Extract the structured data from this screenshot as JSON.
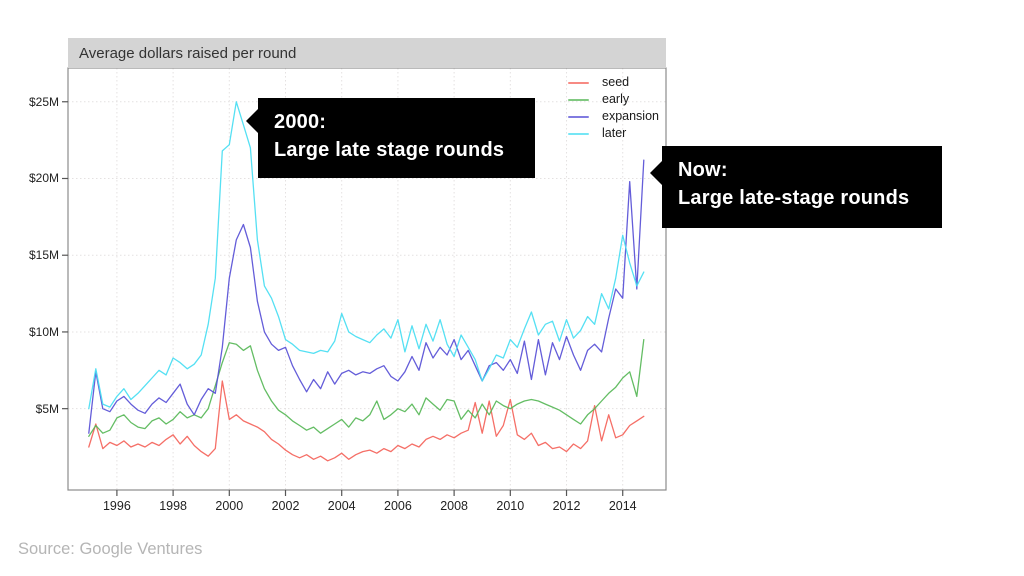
{
  "source": "Source: Google Ventures",
  "annotations": [
    {
      "line1": "2000:",
      "line2": "Large late stage rounds"
    },
    {
      "line1": "Now:",
      "line2": "Large late-stage rounds"
    }
  ],
  "colors": {
    "title_bar_bg": "#d4d4d4",
    "title_text": "#333333",
    "annotation_bg": "#000000",
    "annotation_text": "#ffffff",
    "axis_text": "#222222",
    "plot_border": "#8c8c8c",
    "tick": "#555555",
    "grid": "#e4e1e1",
    "source_text": "#b5b5b5"
  },
  "chart_data": {
    "type": "line",
    "title": "Average dollars raised per round",
    "xlabel": "",
    "ylabel": "",
    "grid": "dotted",
    "legend_position": "top-right-inside",
    "x_start": 1995,
    "x_step": 0.25,
    "x_unit": "year (quarterly points)",
    "y_unit": "$M average raised per round",
    "xlim": [
      1994.26,
      2015.54
    ],
    "ylim": [
      -0.3,
      27.2
    ],
    "x_ticks": [
      "1996",
      "1998",
      "2000",
      "2002",
      "2004",
      "2006",
      "2008",
      "2010",
      "2012",
      "2014"
    ],
    "x_tick_years": [
      1996,
      1998,
      2000,
      2002,
      2004,
      2006,
      2008,
      2010,
      2012,
      2014
    ],
    "y_ticks": [
      {
        "value": 5,
        "label": "$5M"
      },
      {
        "value": 10,
        "label": "$10M"
      },
      {
        "value": 15,
        "label": "$15M"
      },
      {
        "value": 20,
        "label": "$20M"
      },
      {
        "value": 25,
        "label": "$25M"
      }
    ],
    "series": [
      {
        "name": "seed",
        "color": "#f4635a",
        "values": [
          2.5,
          4.0,
          2.4,
          2.8,
          2.6,
          2.9,
          2.5,
          2.7,
          2.5,
          2.8,
          2.6,
          3.0,
          3.3,
          2.7,
          3.2,
          2.6,
          2.2,
          1.9,
          2.4,
          6.8,
          4.3,
          4.6,
          4.2,
          4.0,
          3.8,
          3.5,
          3.0,
          2.7,
          2.3,
          2.0,
          1.8,
          2.0,
          1.7,
          1.9,
          1.6,
          1.8,
          2.1,
          1.7,
          2.0,
          2.2,
          2.3,
          2.1,
          2.4,
          2.2,
          2.6,
          2.4,
          2.7,
          2.5,
          3.0,
          3.2,
          3.0,
          3.3,
          3.1,
          3.4,
          3.6,
          5.4,
          3.4,
          5.5,
          3.2,
          3.9,
          5.6,
          3.3,
          3.0,
          3.4,
          2.6,
          2.8,
          2.4,
          2.5,
          2.2,
          2.7,
          2.4,
          2.9,
          5.2,
          2.9,
          4.6,
          3.1,
          3.3,
          3.9,
          4.2,
          4.5
        ]
      },
      {
        "name": "early",
        "color": "#57b757",
        "values": [
          3.2,
          3.9,
          3.4,
          3.6,
          4.4,
          4.6,
          4.1,
          3.8,
          3.7,
          4.2,
          4.4,
          4.0,
          4.3,
          4.8,
          4.4,
          4.6,
          4.4,
          5.0,
          6.5,
          8.0,
          9.3,
          9.2,
          8.8,
          9.1,
          7.5,
          6.3,
          5.5,
          4.9,
          4.6,
          4.2,
          3.9,
          3.6,
          3.8,
          3.4,
          3.7,
          4.0,
          4.3,
          3.8,
          4.4,
          4.2,
          4.6,
          5.5,
          4.3,
          4.6,
          5.0,
          4.8,
          5.3,
          4.6,
          5.7,
          5.3,
          4.9,
          5.6,
          5.5,
          4.3,
          4.9,
          4.4,
          5.3,
          4.6,
          5.5,
          5.2,
          5.0,
          5.3,
          5.5,
          5.6,
          5.5,
          5.3,
          5.1,
          4.9,
          4.6,
          4.3,
          4.0,
          4.6,
          5.0,
          5.5,
          6.0,
          6.4,
          7.0,
          7.4,
          5.8,
          9.5
        ]
      },
      {
        "name": "expansion",
        "color": "#574fd6",
        "values": [
          3.4,
          7.4,
          5.0,
          4.8,
          5.5,
          5.8,
          5.3,
          4.9,
          4.7,
          5.3,
          5.7,
          5.4,
          6.0,
          6.6,
          5.3,
          4.6,
          5.6,
          6.3,
          6.0,
          9.0,
          13.5,
          16.0,
          17.0,
          15.5,
          12.0,
          10.0,
          9.2,
          8.8,
          9.0,
          7.8,
          6.9,
          6.1,
          6.9,
          6.3,
          7.4,
          6.6,
          7.3,
          7.5,
          7.2,
          7.4,
          7.3,
          7.6,
          7.8,
          7.1,
          6.8,
          7.4,
          8.4,
          7.5,
          9.3,
          8.3,
          9.0,
          8.5,
          9.5,
          8.2,
          8.8,
          7.8,
          6.8,
          7.8,
          8.0,
          7.5,
          8.2,
          7.3,
          9.4,
          6.9,
          9.5,
          7.2,
          9.3,
          8.2,
          9.7,
          8.5,
          7.5,
          8.8,
          9.2,
          8.7,
          10.9,
          12.8,
          12.2,
          19.8,
          12.8,
          21.2
        ]
      },
      {
        "name": "later",
        "color": "#47ddf2",
        "values": [
          5.0,
          7.6,
          5.3,
          5.1,
          5.8,
          6.3,
          5.6,
          6.0,
          6.5,
          7.0,
          7.5,
          7.2,
          8.3,
          8.0,
          7.6,
          7.9,
          8.5,
          10.5,
          13.5,
          21.8,
          22.2,
          25.0,
          23.5,
          22.0,
          16.0,
          13.0,
          12.2,
          11.0,
          9.5,
          9.2,
          8.8,
          8.7,
          8.6,
          8.8,
          8.7,
          9.4,
          11.2,
          10.0,
          9.7,
          9.5,
          9.3,
          9.8,
          10.2,
          9.6,
          10.8,
          8.7,
          10.4,
          8.9,
          10.5,
          9.4,
          10.8,
          9.2,
          8.4,
          9.8,
          9.0,
          8.2,
          6.8,
          7.6,
          8.5,
          8.3,
          9.5,
          9.0,
          10.2,
          11.3,
          9.8,
          10.5,
          10.7,
          9.4,
          10.8,
          9.6,
          10.1,
          11.0,
          10.5,
          12.5,
          11.5,
          13.5,
          16.3,
          14.5,
          13.0,
          13.9
        ]
      }
    ]
  }
}
